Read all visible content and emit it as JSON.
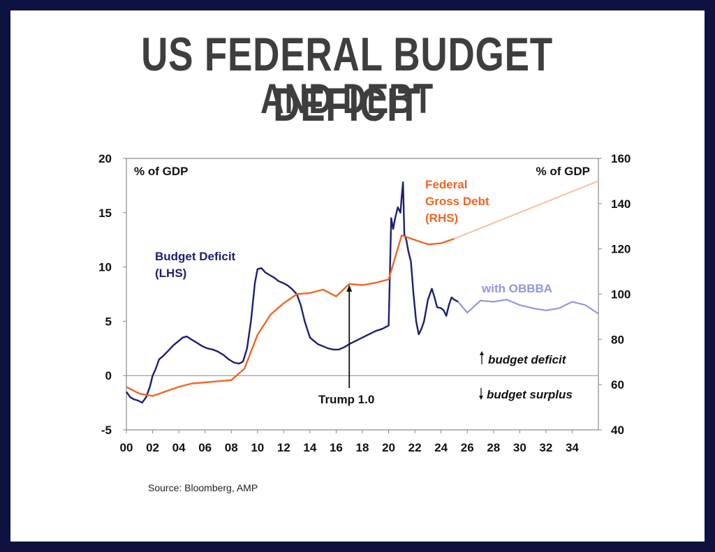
{
  "page": {
    "title_line1": "US FEDERAL BUDGET DEFICIT",
    "title_line2": "AND DEBT",
    "source": "Source: Bloomberg, AMP"
  },
  "colors": {
    "frame": "#0d1240",
    "deficit": "#1b1f73",
    "deficit_projection": "#8f97dd",
    "debt": "#f26522",
    "debt_projection": "#f8c4a6"
  },
  "chart_data": {
    "type": "line",
    "left_axis_label": "% of GDP",
    "right_axis_label": "% of GDP",
    "x_ticks": [
      "00",
      "02",
      "04",
      "06",
      "08",
      "10",
      "12",
      "14",
      "16",
      "18",
      "20",
      "22",
      "24",
      "26",
      "28",
      "30",
      "32",
      "34"
    ],
    "x_range": [
      2000,
      2036
    ],
    "ylim_left": [
      -5,
      20
    ],
    "ylim_right": [
      40,
      160
    ],
    "left_ticks": [
      -5,
      0,
      5,
      10,
      15,
      20
    ],
    "right_ticks": [
      40,
      60,
      80,
      100,
      120,
      140,
      160
    ],
    "grid": false,
    "series": [
      {
        "name": "Budget Deficit (LHS)",
        "axis": "left",
        "x": [
          2000.0,
          2000.3,
          2000.6,
          2000.9,
          2001.2,
          2001.5,
          2001.8,
          2002.0,
          2002.2,
          2002.5,
          2002.8,
          2003.2,
          2003.6,
          2004.0,
          2004.3,
          2004.6,
          2005.0,
          2005.4,
          2005.8,
          2006.2,
          2006.6,
          2007.0,
          2007.4,
          2007.8,
          2008.2,
          2008.6,
          2008.9,
          2009.2,
          2009.5,
          2009.8,
          2010.0,
          2010.3,
          2010.6,
          2011.0,
          2011.3,
          2011.6,
          2012.0,
          2012.3,
          2012.6,
          2013.0,
          2013.3,
          2013.6,
          2014.0,
          2014.3,
          2014.6,
          2015.0,
          2015.4,
          2015.8,
          2016.2,
          2016.6,
          2017.0,
          2017.5,
          2018.0,
          2018.5,
          2019.0,
          2019.5,
          2020.0,
          2020.2,
          2020.35,
          2020.5,
          2020.7,
          2020.9,
          2021.0,
          2021.1,
          2021.2,
          2021.35,
          2021.5,
          2021.7,
          2021.9,
          2022.1,
          2022.3,
          2022.5,
          2022.7,
          2023.0,
          2023.3,
          2023.5,
          2023.7,
          2024.0,
          2024.2,
          2024.4,
          2024.6,
          2024.8,
          2025.0,
          2025.3
        ],
        "values": [
          -1.5,
          -2.0,
          -2.2,
          -2.3,
          -2.5,
          -2.0,
          -1.0,
          0.0,
          0.5,
          1.5,
          1.8,
          2.3,
          2.8,
          3.2,
          3.5,
          3.6,
          3.3,
          3.0,
          2.7,
          2.5,
          2.4,
          2.2,
          1.9,
          1.5,
          1.2,
          1.1,
          1.3,
          2.5,
          5.0,
          8.5,
          9.8,
          9.9,
          9.5,
          9.2,
          9.0,
          8.7,
          8.5,
          8.3,
          8.0,
          7.5,
          6.5,
          5.0,
          3.5,
          3.2,
          2.9,
          2.7,
          2.5,
          2.4,
          2.4,
          2.6,
          2.9,
          3.2,
          3.5,
          3.8,
          4.1,
          4.3,
          4.6,
          14.5,
          13.5,
          14.5,
          15.5,
          15.0,
          16.5,
          17.8,
          13.0,
          12.5,
          11.5,
          10.5,
          7.5,
          5.0,
          3.8,
          4.3,
          5.0,
          7.0,
          8.0,
          7.2,
          6.3,
          6.2,
          6.0,
          5.5,
          6.5,
          7.2,
          7.0,
          6.8
        ]
      },
      {
        "name": "with OBBBA",
        "axis": "left",
        "projection": true,
        "x": [
          2025.3,
          2026.0,
          2027.0,
          2028.0,
          2029.0,
          2030.0,
          2031.0,
          2032.0,
          2033.0,
          2034.0,
          2035.0,
          2036.0
        ],
        "values": [
          6.8,
          5.8,
          6.9,
          6.8,
          7.0,
          6.5,
          6.2,
          6.0,
          6.2,
          6.8,
          6.5,
          5.7
        ]
      },
      {
        "name": "Federal Gross Debt (RHS)",
        "axis": "right",
        "x": [
          2000.0,
          2001.0,
          2002.0,
          2003.0,
          2004.0,
          2005.0,
          2006.0,
          2007.0,
          2008.0,
          2009.0,
          2010.0,
          2011.0,
          2012.0,
          2013.0,
          2014.0,
          2015.0,
          2016.0,
          2017.0,
          2018.0,
          2019.0,
          2020.0,
          2021.0,
          2022.0,
          2023.0,
          2024.0,
          2025.0
        ],
        "values": [
          59,
          56,
          55,
          57,
          59,
          60.5,
          61,
          61.5,
          62,
          67,
          82,
          91,
          96,
          100,
          100.5,
          102,
          99,
          104.5,
          104,
          105,
          106.5,
          126,
          124,
          122,
          122.5,
          124.5
        ]
      },
      {
        "name": "Federal Gross Debt projection",
        "axis": "right",
        "projection": true,
        "x": [
          2025.0,
          2036.0
        ],
        "values": [
          124.5,
          150
        ]
      }
    ],
    "labels": {
      "deficit": [
        "Budget Deficit",
        "(LHS)"
      ],
      "debt": [
        "Federal",
        "Gross Debt",
        "(RHS)"
      ],
      "obbba": "with OBBBA",
      "trump": "Trump 1.0",
      "budget_deficit": "budget deficit",
      "budget_surplus": "budget surplus"
    },
    "annotation_arrow_x": 2017.0
  }
}
